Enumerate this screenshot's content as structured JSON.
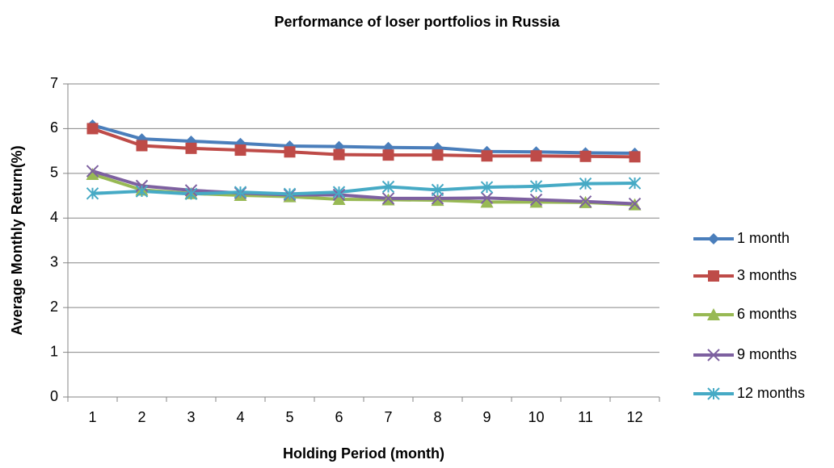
{
  "chart_data": {
    "type": "line",
    "title": "Performance of loser portfolios in Russia",
    "xlabel": "Holding Period (month)",
    "ylabel": "Average Monthly Return(%)",
    "categories": [
      "1",
      "2",
      "3",
      "4",
      "5",
      "6",
      "7",
      "8",
      "9",
      "10",
      "11",
      "12"
    ],
    "ylim": [
      0,
      7
    ],
    "yticks": [
      0,
      1,
      2,
      3,
      4,
      5,
      6,
      7
    ],
    "grid": true,
    "legend": "right",
    "series": [
      {
        "name": "1 month",
        "color": "#4a7ebb",
        "marker": "diamond",
        "values": [
          6.08,
          5.77,
          5.72,
          5.67,
          5.61,
          5.6,
          5.58,
          5.57,
          5.49,
          5.48,
          5.46,
          5.45
        ]
      },
      {
        "name": "3 months",
        "color": "#be4b48",
        "marker": "square",
        "values": [
          6.0,
          5.62,
          5.56,
          5.52,
          5.48,
          5.42,
          5.41,
          5.41,
          5.39,
          5.39,
          5.38,
          5.37
        ]
      },
      {
        "name": "6 months",
        "color": "#98b954",
        "marker": "triangle",
        "values": [
          4.98,
          4.63,
          4.55,
          4.51,
          4.48,
          4.42,
          4.41,
          4.4,
          4.36,
          4.36,
          4.35,
          4.3
        ]
      },
      {
        "name": "9 months",
        "color": "#7d60a0",
        "marker": "x",
        "values": [
          5.05,
          4.72,
          4.62,
          4.56,
          4.52,
          4.52,
          4.44,
          4.44,
          4.45,
          4.41,
          4.37,
          4.32
        ]
      },
      {
        "name": "12 months",
        "color": "#46aac5",
        "marker": "star",
        "values": [
          4.55,
          4.6,
          4.54,
          4.58,
          4.54,
          4.58,
          4.7,
          4.63,
          4.69,
          4.71,
          4.77,
          4.78
        ]
      }
    ]
  }
}
